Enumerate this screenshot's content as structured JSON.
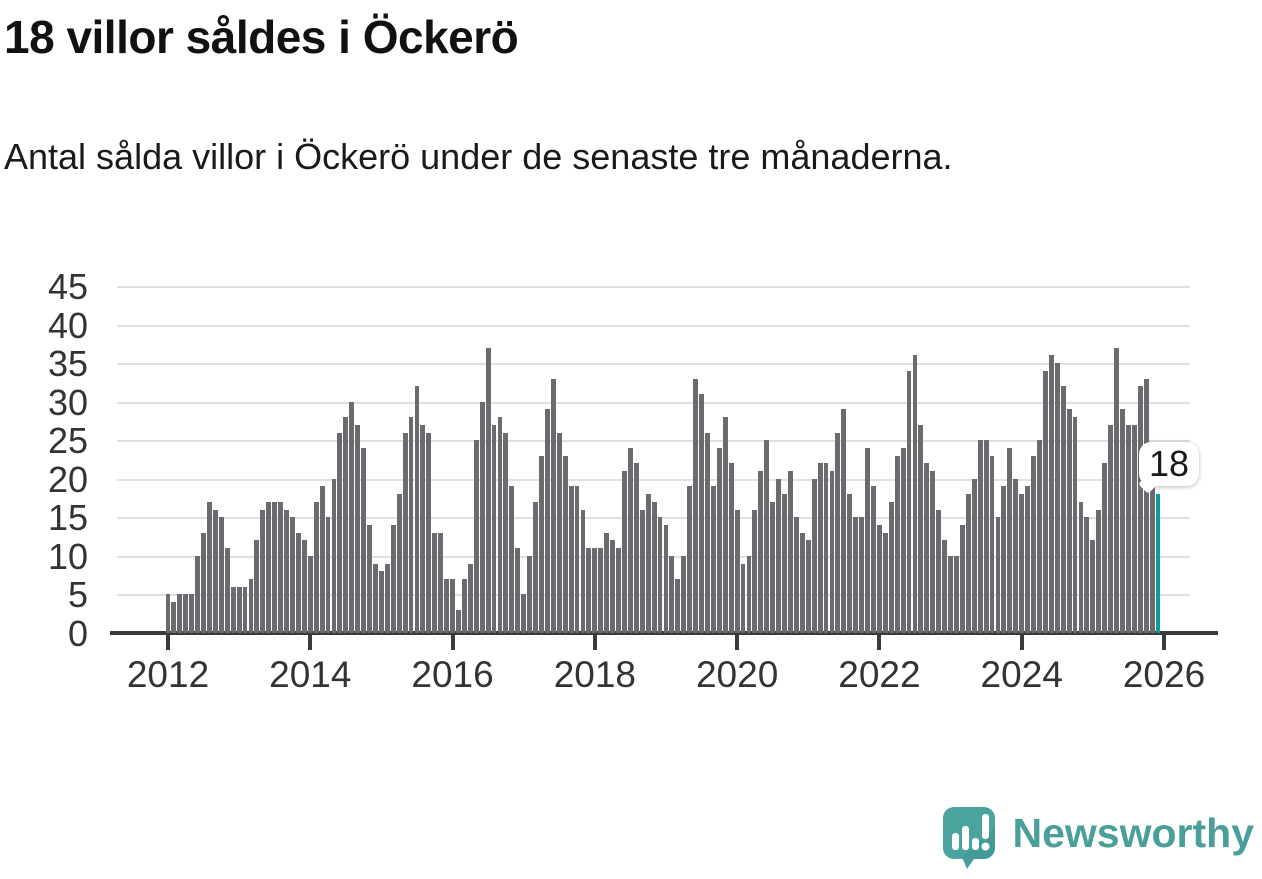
{
  "header": {
    "title": "18 villor såldes i Öckerö",
    "subtitle": "Antal sålda villor i Öckerö under de senaste tre månaderna."
  },
  "chart_data": {
    "type": "bar",
    "title": "18 villor såldes i Öckerö",
    "subtitle": "Antal sålda villor i Öckerö under de senaste tre månaderna.",
    "xlabel": "",
    "ylabel": "",
    "x_start_year": 2012,
    "x_tick_labels": [
      "2012",
      "2014",
      "2016",
      "2018",
      "2020",
      "2022",
      "2024",
      "2026"
    ],
    "y_ticks": [
      0,
      5,
      10,
      15,
      20,
      25,
      30,
      35,
      40,
      45
    ],
    "ylim": [
      0,
      45
    ],
    "grid": true,
    "series_note": "rolling 3-month count of houses sold per month, Jan 2012 onward; last bar highlighted",
    "values": [
      5,
      4,
      5,
      5,
      5,
      10,
      13,
      17,
      16,
      15,
      11,
      6,
      6,
      6,
      7,
      12,
      16,
      17,
      17,
      17,
      16,
      15,
      13,
      12,
      10,
      17,
      19,
      15,
      20,
      26,
      28,
      30,
      27,
      24,
      14,
      9,
      8,
      9,
      14,
      18,
      26,
      28,
      32,
      27,
      26,
      13,
      13,
      7,
      7,
      3,
      7,
      9,
      25,
      30,
      37,
      27,
      28,
      26,
      19,
      11,
      5,
      10,
      17,
      23,
      29,
      33,
      26,
      23,
      19,
      19,
      16,
      11,
      11,
      11,
      13,
      12,
      11,
      21,
      24,
      22,
      16,
      18,
      17,
      15,
      14,
      10,
      7,
      10,
      19,
      33,
      31,
      26,
      19,
      24,
      28,
      22,
      16,
      9,
      10,
      16,
      21,
      25,
      17,
      20,
      18,
      21,
      15,
      13,
      12,
      20,
      22,
      22,
      21,
      26,
      29,
      18,
      15,
      15,
      24,
      19,
      14,
      13,
      17,
      23,
      24,
      34,
      36,
      27,
      22,
      21,
      16,
      12,
      10,
      10,
      14,
      18,
      20,
      25,
      25,
      23,
      15,
      19,
      24,
      20,
      18,
      19,
      23,
      25,
      34,
      36,
      35,
      32,
      29,
      28,
      17,
      15,
      12,
      16,
      22,
      27,
      37,
      29,
      27,
      27,
      32,
      33,
      21,
      18
    ],
    "highlight": {
      "position": "last",
      "value": 18,
      "label": "18",
      "color": "#0d9b9b"
    },
    "colors": {
      "bar": "#6a6a6f",
      "highlight": "#0d9b9b",
      "gridline": "#e0e0e0",
      "axis": "#3a3a3a",
      "tick_text": "#333333"
    },
    "legend": null
  },
  "footer": {
    "brand": "Newsworthy",
    "logo_icon": "newsworthy-speech-bubble-chart-icon",
    "brand_color": "#4a9f9a",
    "logo_fill": "#4aa39e"
  }
}
